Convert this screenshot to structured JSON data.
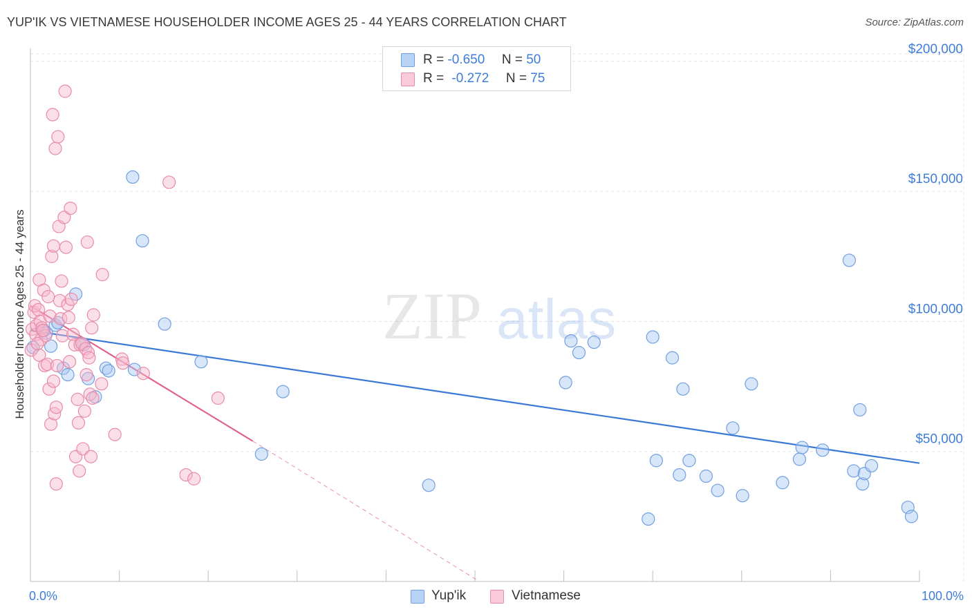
{
  "header": {
    "title": "YUP'IK VS VIETNAMESE HOUSEHOLDER INCOME AGES 25 - 44 YEARS CORRELATION CHART",
    "source": "Source: ZipAtlas.com"
  },
  "watermark": {
    "zip": "ZIP",
    "atlas": "atlas"
  },
  "legend_top": {
    "rows": [
      {
        "r_label": "R =",
        "r_value": "-0.650",
        "n_label": "N =",
        "n_value": "50",
        "color": "#a9c8f2"
      },
      {
        "r_label": "R =",
        "r_value": "-0.272",
        "n_label": "N =",
        "n_value": "75",
        "color": "#f7b8cb"
      }
    ]
  },
  "legend_bottom": {
    "items": [
      "Yup'ik",
      "Vietnamese"
    ]
  },
  "chart_data": {
    "type": "scatter",
    "title": "YUP'IK VS VIETNAMESE HOUSEHOLDER INCOME AGES 25 - 44 YEARS CORRELATION CHART",
    "xlabel": "",
    "ylabel": "Householder Income Ages 25 - 44 years",
    "xlim": [
      0,
      100
    ],
    "ylim": [
      0,
      205000
    ],
    "x_tick_labels": [
      "0.0%",
      "100.0%"
    ],
    "y_ticks": [
      50000,
      100000,
      150000,
      200000
    ],
    "y_tick_labels": [
      "$50,000",
      "$100,000",
      "$150,000",
      "$200,000"
    ],
    "grid": true,
    "legend_position": "top-center",
    "colors": {
      "yupik": "#3a78d6",
      "vietnamese": "#e0628e",
      "yupik_fill": "#a9c8f2",
      "vietnamese_fill": "#f7b8cb"
    },
    "series": [
      {
        "name": "Yup'ik",
        "points": [
          [
            0.3,
            90000
          ],
          [
            1.5,
            96500
          ],
          [
            2.3,
            90500
          ],
          [
            2.8,
            98500
          ],
          [
            3.1,
            99500
          ],
          [
            3.7,
            82000
          ],
          [
            4.2,
            79500
          ],
          [
            5.1,
            110500
          ],
          [
            6.0,
            91000
          ],
          [
            6.5,
            78000
          ],
          [
            7.3,
            71000
          ],
          [
            8.5,
            82000
          ],
          [
            8.8,
            81000
          ],
          [
            11.5,
            155500
          ],
          [
            11.7,
            81500
          ],
          [
            12.6,
            131000
          ],
          [
            15.1,
            99000
          ],
          [
            19.2,
            84500
          ],
          [
            26.0,
            49000
          ],
          [
            28.4,
            73000
          ],
          [
            44.8,
            37000
          ],
          [
            60.2,
            76500
          ],
          [
            60.8,
            92500
          ],
          [
            61.7,
            88000
          ],
          [
            63.4,
            92000
          ],
          [
            69.5,
            24000
          ],
          [
            70.0,
            94000
          ],
          [
            70.4,
            46500
          ],
          [
            72.2,
            86000
          ],
          [
            73.0,
            41000
          ],
          [
            73.4,
            74000
          ],
          [
            74.1,
            46500
          ],
          [
            76.0,
            40500
          ],
          [
            77.3,
            35000
          ],
          [
            79.0,
            59000
          ],
          [
            80.1,
            33000
          ],
          [
            81.1,
            76000
          ],
          [
            84.6,
            38000
          ],
          [
            86.5,
            47000
          ],
          [
            86.8,
            51500
          ],
          [
            89.1,
            50500
          ],
          [
            92.1,
            123500
          ],
          [
            92.6,
            42500
          ],
          [
            93.3,
            66000
          ],
          [
            93.6,
            37500
          ],
          [
            93.8,
            41500
          ],
          [
            94.6,
            44500
          ],
          [
            98.7,
            28500
          ],
          [
            99.1,
            25000
          ],
          [
            1.8,
            95500
          ]
        ]
      },
      {
        "name": "Vietnamese",
        "points": [
          [
            0.1,
            89000
          ],
          [
            0.2,
            97000
          ],
          [
            0.4,
            103500
          ],
          [
            0.5,
            106000
          ],
          [
            0.6,
            95000
          ],
          [
            0.7,
            98500
          ],
          [
            0.9,
            104500
          ],
          [
            1.0,
            87000
          ],
          [
            1.0,
            116000
          ],
          [
            1.1,
            100000
          ],
          [
            1.2,
            93000
          ],
          [
            1.3,
            97500
          ],
          [
            1.5,
            112000
          ],
          [
            1.6,
            83000
          ],
          [
            1.7,
            94500
          ],
          [
            1.9,
            83500
          ],
          [
            2.0,
            109500
          ],
          [
            2.1,
            74000
          ],
          [
            2.2,
            102000
          ],
          [
            2.3,
            60500
          ],
          [
            2.4,
            125000
          ],
          [
            2.5,
            179500
          ],
          [
            2.6,
            129000
          ],
          [
            2.7,
            64500
          ],
          [
            2.8,
            166500
          ],
          [
            2.9,
            67000
          ],
          [
            2.9,
            37500
          ],
          [
            3.1,
            171000
          ],
          [
            3.2,
            136500
          ],
          [
            3.3,
            108000
          ],
          [
            3.4,
            101000
          ],
          [
            3.5,
            115500
          ],
          [
            3.6,
            94500
          ],
          [
            3.8,
            140000
          ],
          [
            3.9,
            188500
          ],
          [
            4.0,
            128500
          ],
          [
            4.2,
            106500
          ],
          [
            4.3,
            101500
          ],
          [
            4.4,
            84500
          ],
          [
            4.5,
            143500
          ],
          [
            4.6,
            108500
          ],
          [
            4.8,
            95000
          ],
          [
            5.0,
            91000
          ],
          [
            5.1,
            48000
          ],
          [
            5.3,
            70000
          ],
          [
            5.4,
            61000
          ],
          [
            5.5,
            42500
          ],
          [
            5.6,
            91000
          ],
          [
            5.8,
            91500
          ],
          [
            5.9,
            51000
          ],
          [
            6.1,
            65500
          ],
          [
            6.2,
            89500
          ],
          [
            6.3,
            79500
          ],
          [
            6.4,
            130500
          ],
          [
            6.5,
            88000
          ],
          [
            6.6,
            86000
          ],
          [
            6.7,
            72000
          ],
          [
            6.8,
            48000
          ],
          [
            6.9,
            97500
          ],
          [
            7.0,
            70500
          ],
          [
            7.1,
            102500
          ],
          [
            8.0,
            76000
          ],
          [
            8.1,
            118000
          ],
          [
            9.5,
            56500
          ],
          [
            10.3,
            85500
          ],
          [
            10.4,
            84000
          ],
          [
            12.7,
            80000
          ],
          [
            15.6,
            153500
          ],
          [
            17.5,
            41000
          ],
          [
            18.4,
            39500
          ],
          [
            21.1,
            70500
          ],
          [
            1.4,
            96500
          ],
          [
            0.8,
            91500
          ],
          [
            3.0,
            83000
          ],
          [
            2.6,
            77000
          ]
        ]
      }
    ],
    "trend_lines": [
      {
        "series": "Yup'ik",
        "x0": 0,
        "y0": 96500,
        "x1": 100,
        "y1": 45500
      },
      {
        "series": "Vietnamese",
        "x0": 0,
        "y0": 106000,
        "x1": 25,
        "y1": 54000,
        "dashed_x1": 50.5,
        "dashed_y1": 0
      }
    ]
  }
}
